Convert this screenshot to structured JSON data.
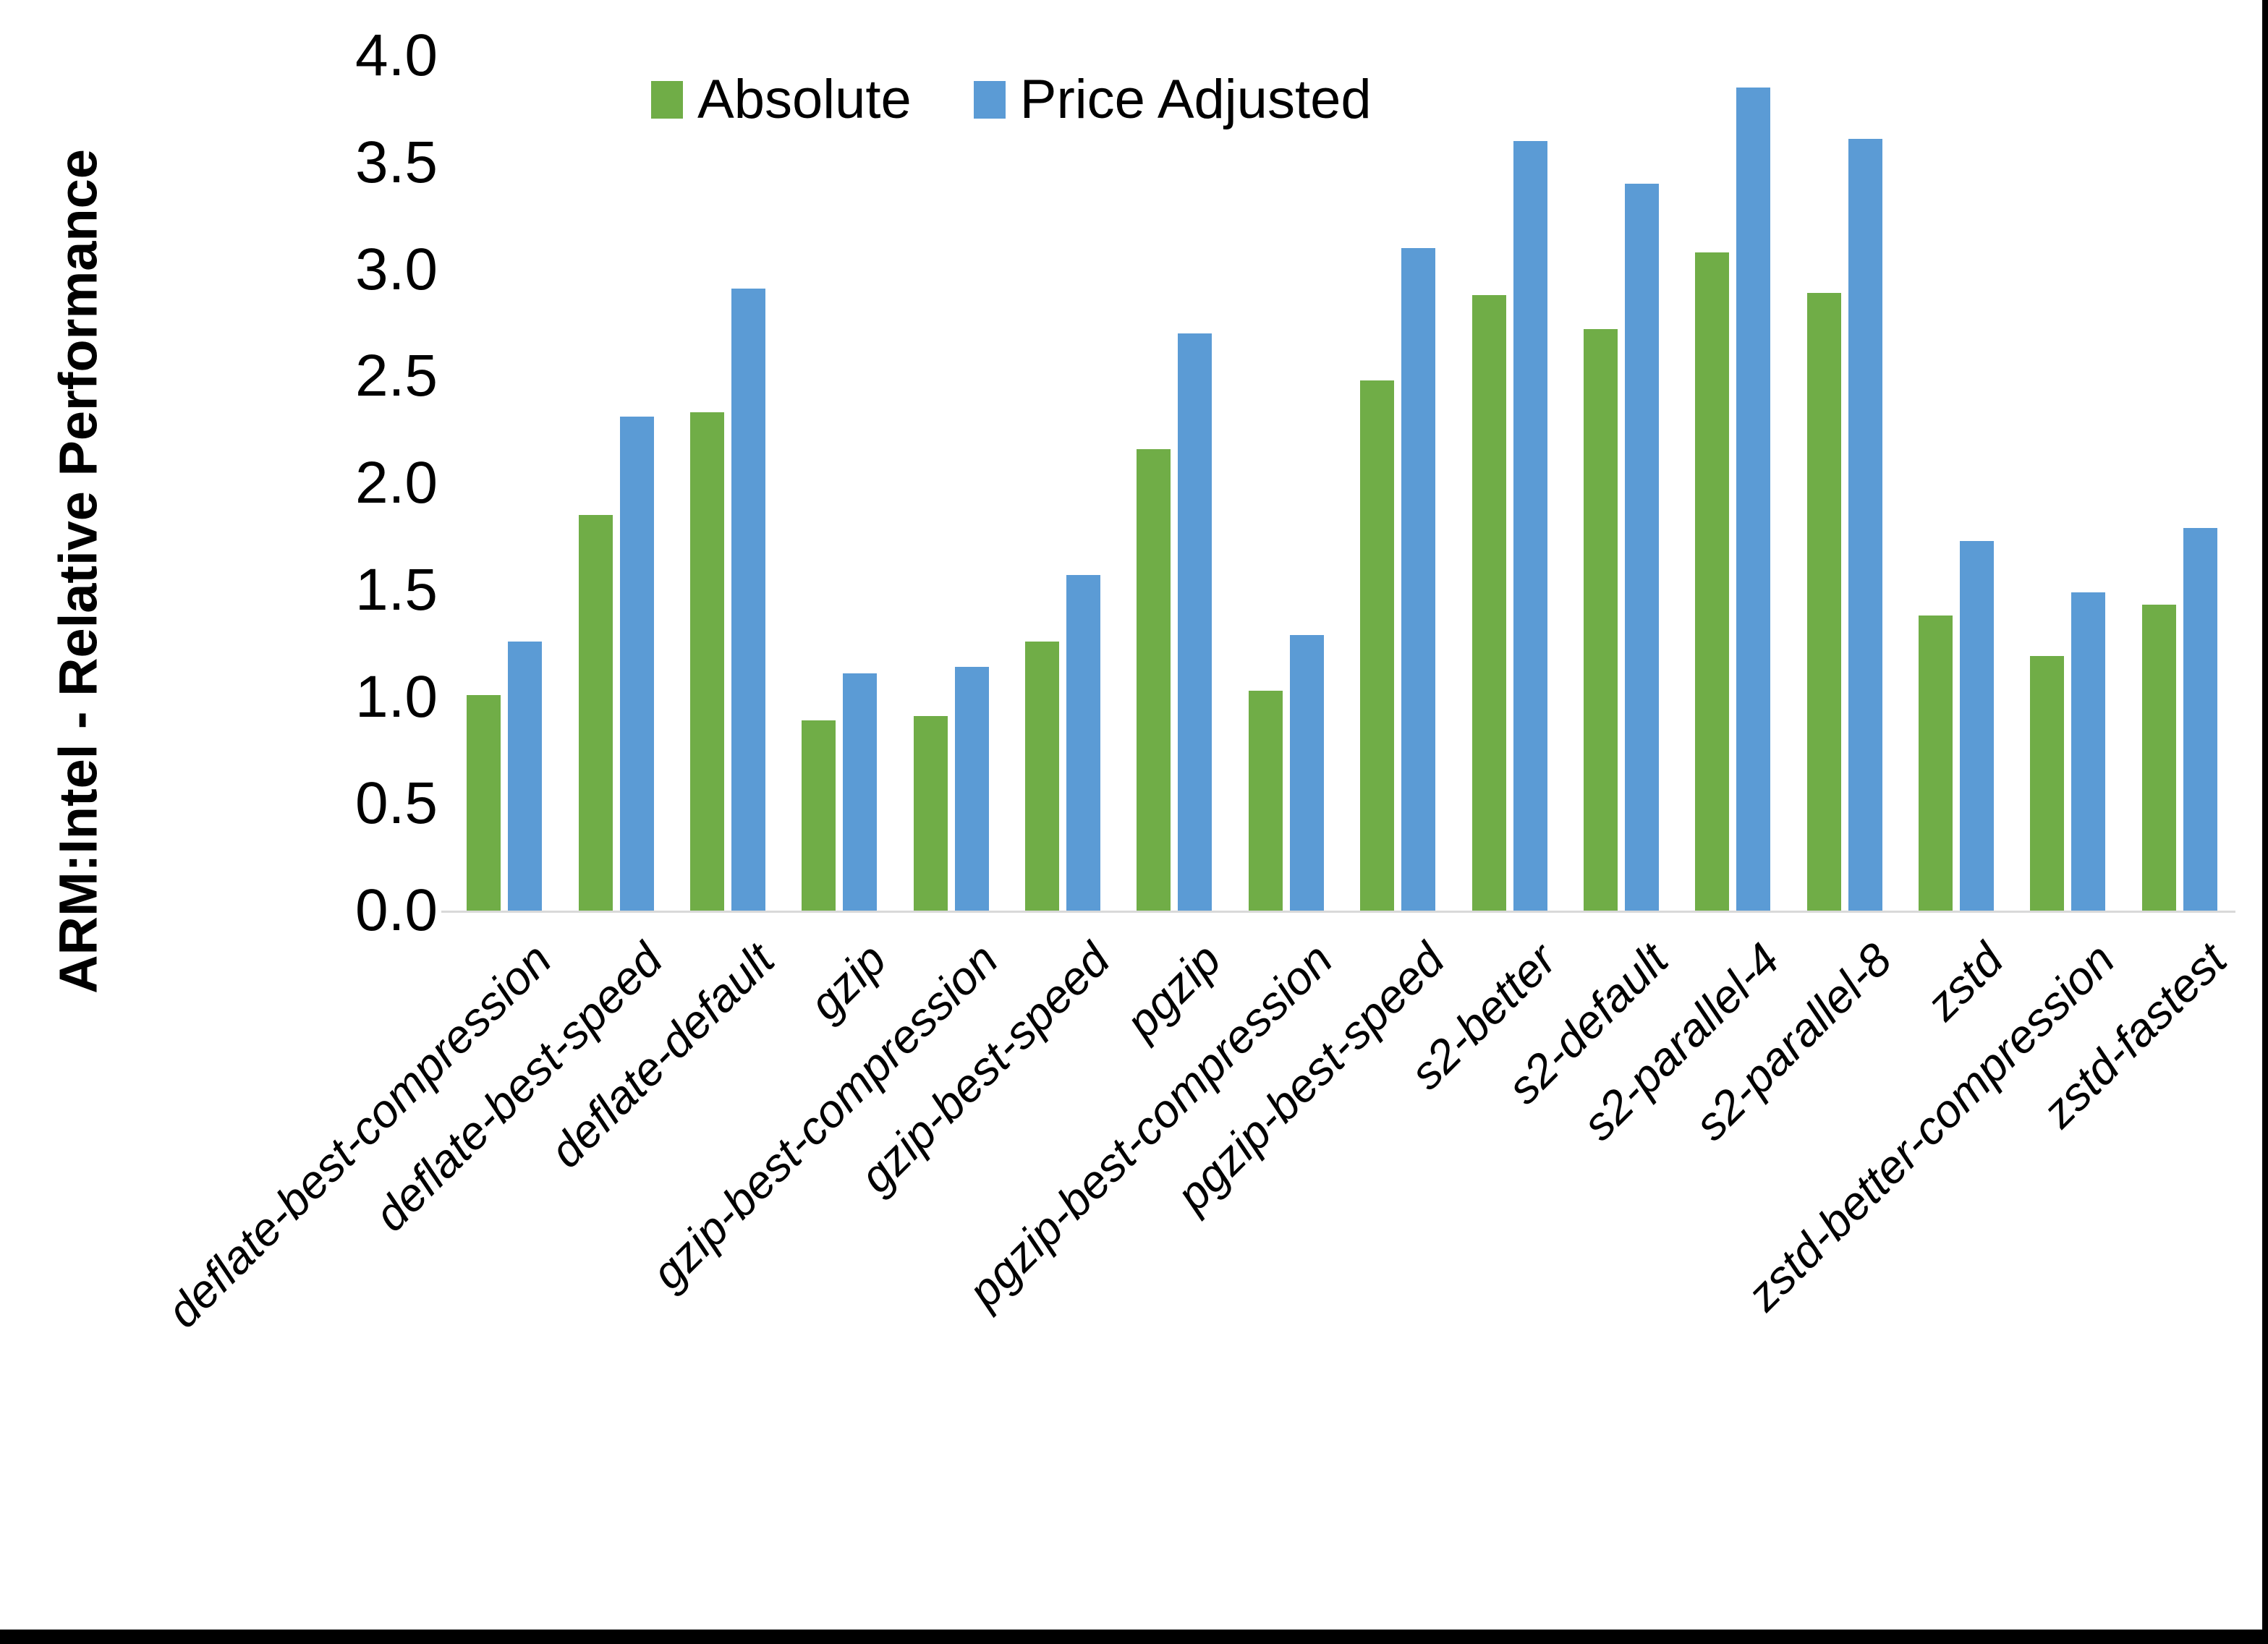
{
  "page": {
    "background": "#FFFFFF",
    "bottom_edge_color": "#000000",
    "right_edge_color": "#000000"
  },
  "chart_data": {
    "type": "bar",
    "title": "",
    "xlabel": "",
    "ylabel": "ARM:Intel - Relative Performance",
    "ylim": [
      0,
      4
    ],
    "ytick_step": 0.5,
    "ytick_labels": [
      "0.0",
      "0.5",
      "1.0",
      "1.5",
      "2.0",
      "2.5",
      "3.0",
      "3.5",
      "4.0"
    ],
    "grid": false,
    "legend_position": "top-center",
    "axis_line_color": "#D9D9D9",
    "text_color": "#000000",
    "categories": [
      "deflate-best-compression",
      "deflate-best-speed",
      "deflate-default",
      "gzip",
      "gzip-best-compression",
      "gzip-best-speed",
      "pgzip",
      "pgzip-best-compression",
      "pgzip-best-speed",
      "s2-better",
      "s2-default",
      "s2-parallel-4",
      "s2-parallel-8",
      "zstd",
      "zstd-better-compression",
      "zstd-fastest"
    ],
    "series": [
      {
        "name": "Absolute",
        "color": "#70AD47",
        "values": [
          1.01,
          1.85,
          2.33,
          0.89,
          0.91,
          1.26,
          2.16,
          1.03,
          2.48,
          2.88,
          2.72,
          3.08,
          2.89,
          1.38,
          1.19,
          1.43
        ]
      },
      {
        "name": "Price Adjusted",
        "color": "#5B9BD5",
        "values": [
          1.26,
          2.31,
          2.91,
          1.11,
          1.14,
          1.57,
          2.7,
          1.29,
          3.1,
          3.6,
          3.4,
          3.85,
          3.61,
          1.73,
          1.49,
          1.79
        ]
      }
    ]
  }
}
